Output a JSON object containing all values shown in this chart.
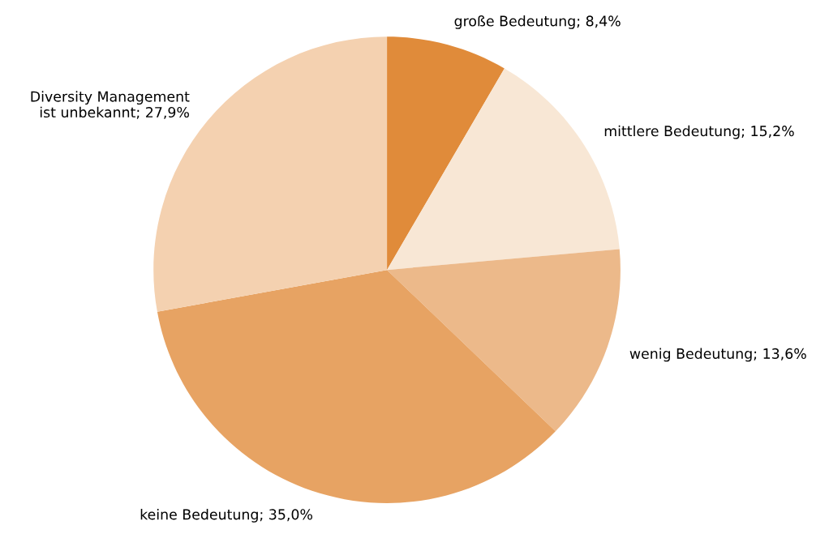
{
  "chart_data": {
    "type": "pie",
    "categories": [
      "große Bedeutung; 8,4%",
      "mittlere Bedeutung; 15,2%",
      "wenig Bedeutung; 13,6%",
      "keine Bedeutung; 35,0%",
      "Diversity Management\nist unbekannt; 27,9%"
    ],
    "values": [
      8.4,
      15.2,
      13.6,
      35.0,
      27.9
    ],
    "colors": [
      "#e08b3a",
      "#f8e7d5",
      "#ecb98a",
      "#e7a363",
      "#f4d1b0"
    ]
  }
}
